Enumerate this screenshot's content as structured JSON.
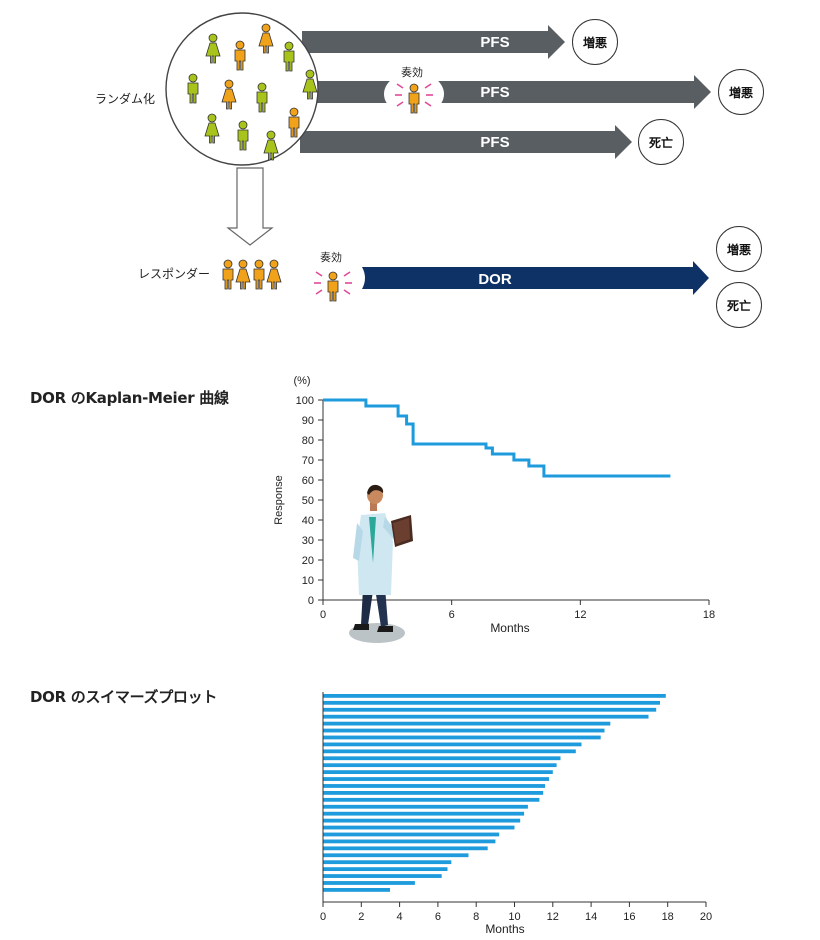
{
  "top_diagram": {
    "randomization_label": "ランダム化",
    "responder_label": "レスポンダー",
    "response_label": "奏効",
    "arrows": [
      {
        "label": "PFS",
        "outcome": "増悪"
      },
      {
        "label": "PFS",
        "outcome": "増悪"
      },
      {
        "label": "PFS",
        "outcome": "死亡"
      }
    ],
    "dor_arrow": {
      "label": "DOR",
      "outcomes": [
        "増悪",
        "死亡"
      ]
    },
    "colors": {
      "arrow_gray": "#595e63",
      "dor_navy": "#0e3266",
      "green": "#a8c41c",
      "orange": "#f0a21b",
      "burst": "#e04a97"
    }
  },
  "km_section": {
    "title": "DOR のKaplan-Meier 曲線",
    "illustration": "doctor-illustration"
  },
  "swimmer_section": {
    "title": "DOR のスイマーズプロット"
  },
  "chart_data": [
    {
      "type": "line",
      "title": "DOR のKaplan-Meier 曲線",
      "xlabel": "Months",
      "ylabel": "Response",
      "yunit": "(%)",
      "xlim": [
        0,
        18
      ],
      "ylim": [
        0,
        100
      ],
      "xticks": [
        0,
        6,
        12,
        18
      ],
      "yticks": [
        0,
        10,
        20,
        30,
        40,
        50,
        60,
        70,
        80,
        90,
        100
      ],
      "step": true,
      "color": "#1e9bdc",
      "series": [
        {
          "name": "DOR",
          "points": [
            [
              0,
              100
            ],
            [
              2,
              100
            ],
            [
              2,
              97
            ],
            [
              3.5,
              97
            ],
            [
              3.5,
              92
            ],
            [
              3.9,
              92
            ],
            [
              3.9,
              88
            ],
            [
              4.2,
              88
            ],
            [
              4.2,
              78
            ],
            [
              7.6,
              78
            ],
            [
              7.6,
              76
            ],
            [
              7.9,
              76
            ],
            [
              7.9,
              73
            ],
            [
              8.9,
              73
            ],
            [
              8.9,
              70
            ],
            [
              9.6,
              70
            ],
            [
              9.6,
              67
            ],
            [
              10.3,
              67
            ],
            [
              10.3,
              62
            ],
            [
              16.2,
              62
            ]
          ]
        }
      ]
    },
    {
      "type": "bar",
      "orientation": "horizontal",
      "title": "DOR のスイマーズプロット",
      "xlabel": "Months",
      "xlim": [
        0,
        20
      ],
      "xticks": [
        0,
        2,
        4,
        6,
        8,
        10,
        12,
        14,
        16,
        18,
        20
      ],
      "color": "#1e9bdc",
      "values": [
        17.9,
        17.6,
        17.4,
        17.0,
        15.0,
        14.7,
        14.5,
        13.5,
        13.2,
        12.4,
        12.2,
        12.0,
        11.8,
        11.6,
        11.5,
        11.3,
        10.7,
        10.5,
        10.3,
        10.0,
        9.2,
        9.0,
        8.6,
        7.6,
        6.7,
        6.5,
        6.2,
        4.8,
        3.5
      ]
    }
  ]
}
